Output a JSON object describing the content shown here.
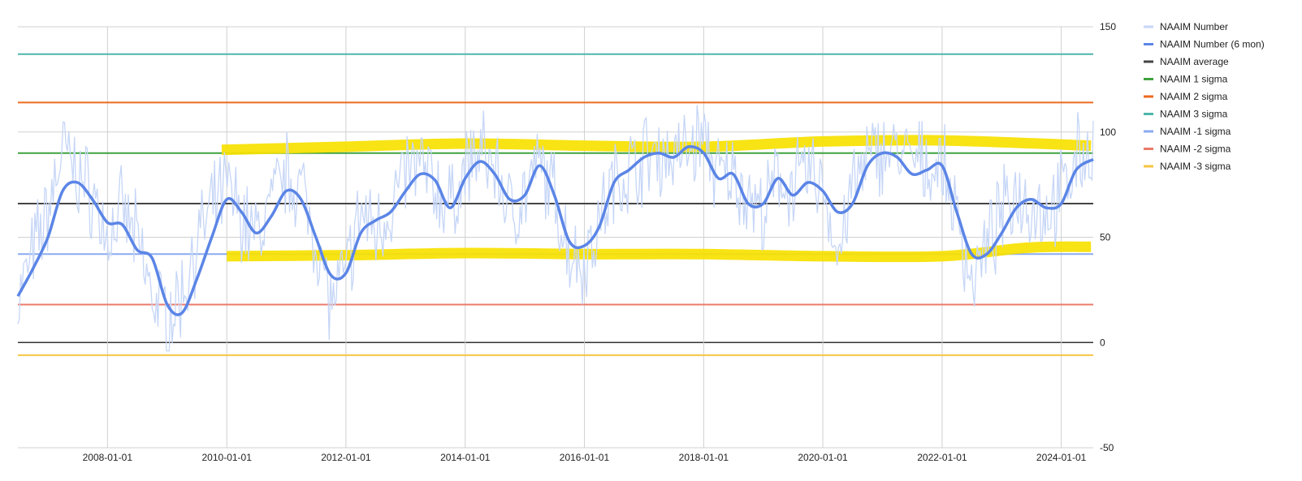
{
  "chart_data": {
    "type": "line",
    "title": "",
    "xlabel": "",
    "ylabel": "",
    "x_range": [
      "2006-07-01",
      "2024-07-15"
    ],
    "ylim": [
      -50,
      150
    ],
    "y_ticks": [
      150,
      100,
      50,
      0,
      -50
    ],
    "x_ticks": [
      "2008-01-01",
      "2010-01-01",
      "2012-01-01",
      "2014-01-01",
      "2016-01-01",
      "2018-01-01",
      "2020-01-01",
      "2022-01-01",
      "2024-01-01"
    ],
    "y_axis_side": "right",
    "grid": true,
    "legend_position": "right",
    "series": [
      {
        "name": "NAAIM Number",
        "color": "#c6d6f7",
        "style": "noisy-line",
        "points": [
          [
            "2006-07-01",
            20
          ],
          [
            "2006-10-01",
            42
          ],
          [
            "2007-01-01",
            62
          ],
          [
            "2007-04-01",
            92
          ],
          [
            "2007-07-01",
            80
          ],
          [
            "2007-10-01",
            70
          ],
          [
            "2008-01-01",
            50
          ],
          [
            "2008-04-01",
            62
          ],
          [
            "2008-07-01",
            48
          ],
          [
            "2008-10-01",
            22
          ],
          [
            "2009-01-01",
            12
          ],
          [
            "2009-04-01",
            22
          ],
          [
            "2009-07-01",
            48
          ],
          [
            "2009-10-01",
            62
          ],
          [
            "2010-01-01",
            74
          ],
          [
            "2010-04-01",
            60
          ],
          [
            "2010-07-01",
            50
          ],
          [
            "2010-10-01",
            66
          ],
          [
            "2011-01-01",
            80
          ],
          [
            "2011-04-01",
            74
          ],
          [
            "2011-07-01",
            50
          ],
          [
            "2011-10-01",
            18
          ],
          [
            "2012-01-01",
            32
          ],
          [
            "2012-04-01",
            62
          ],
          [
            "2012-07-01",
            54
          ],
          [
            "2012-10-01",
            64
          ],
          [
            "2013-01-01",
            80
          ],
          [
            "2013-04-01",
            84
          ],
          [
            "2013-07-01",
            74
          ],
          [
            "2013-10-01",
            64
          ],
          [
            "2014-01-01",
            82
          ],
          [
            "2014-04-01",
            90
          ],
          [
            "2014-07-01",
            84
          ],
          [
            "2014-10-01",
            62
          ],
          [
            "2015-01-01",
            70
          ],
          [
            "2015-04-01",
            84
          ],
          [
            "2015-07-01",
            70
          ],
          [
            "2015-10-01",
            44
          ],
          [
            "2016-01-01",
            38
          ],
          [
            "2016-04-01",
            58
          ],
          [
            "2016-07-01",
            76
          ],
          [
            "2016-10-01",
            82
          ],
          [
            "2017-01-01",
            88
          ],
          [
            "2017-04-01",
            90
          ],
          [
            "2017-07-01",
            88
          ],
          [
            "2017-10-01",
            92
          ],
          [
            "2018-01-01",
            98
          ],
          [
            "2018-04-01",
            78
          ],
          [
            "2018-07-01",
            80
          ],
          [
            "2018-10-01",
            70
          ],
          [
            "2019-01-01",
            60
          ],
          [
            "2019-04-01",
            78
          ],
          [
            "2019-07-01",
            74
          ],
          [
            "2019-10-01",
            80
          ],
          [
            "2020-01-01",
            76
          ],
          [
            "2020-04-01",
            40
          ],
          [
            "2020-07-01",
            74
          ],
          [
            "2020-10-01",
            86
          ],
          [
            "2021-01-01",
            92
          ],
          [
            "2021-04-01",
            90
          ],
          [
            "2021-07-01",
            86
          ],
          [
            "2021-10-01",
            84
          ],
          [
            "2022-01-01",
            84
          ],
          [
            "2022-04-01",
            60
          ],
          [
            "2022-07-01",
            30
          ],
          [
            "2022-10-01",
            44
          ],
          [
            "2023-01-01",
            60
          ],
          [
            "2023-04-01",
            72
          ],
          [
            "2023-07-01",
            66
          ],
          [
            "2023-10-01",
            62
          ],
          [
            "2024-01-01",
            70
          ],
          [
            "2024-04-01",
            88
          ],
          [
            "2024-07-15",
            92
          ]
        ]
      },
      {
        "name": "NAAIM Number (6 mon)",
        "color": "#5b85e6",
        "style": "thick-line",
        "points": [
          [
            "2006-07-01",
            22
          ],
          [
            "2006-10-01",
            35
          ],
          [
            "2007-01-01",
            50
          ],
          [
            "2007-04-01",
            72
          ],
          [
            "2007-07-01",
            76
          ],
          [
            "2007-10-01",
            68
          ],
          [
            "2008-01-01",
            57
          ],
          [
            "2008-04-01",
            56
          ],
          [
            "2008-07-01",
            44
          ],
          [
            "2008-10-01",
            40
          ],
          [
            "2009-01-01",
            18
          ],
          [
            "2009-04-01",
            14
          ],
          [
            "2009-07-01",
            30
          ],
          [
            "2009-10-01",
            50
          ],
          [
            "2010-01-01",
            68
          ],
          [
            "2010-04-01",
            62
          ],
          [
            "2010-07-01",
            52
          ],
          [
            "2010-10-01",
            60
          ],
          [
            "2011-01-01",
            72
          ],
          [
            "2011-04-01",
            68
          ],
          [
            "2011-07-01",
            50
          ],
          [
            "2011-10-01",
            32
          ],
          [
            "2012-01-01",
            33
          ],
          [
            "2012-04-01",
            52
          ],
          [
            "2012-07-01",
            58
          ],
          [
            "2012-10-01",
            62
          ],
          [
            "2013-01-01",
            72
          ],
          [
            "2013-04-01",
            80
          ],
          [
            "2013-07-01",
            77
          ],
          [
            "2013-10-01",
            64
          ],
          [
            "2014-01-01",
            78
          ],
          [
            "2014-04-01",
            86
          ],
          [
            "2014-07-01",
            80
          ],
          [
            "2014-10-01",
            68
          ],
          [
            "2015-01-01",
            70
          ],
          [
            "2015-04-01",
            84
          ],
          [
            "2015-07-01",
            70
          ],
          [
            "2015-10-01",
            48
          ],
          [
            "2016-01-01",
            46
          ],
          [
            "2016-04-01",
            55
          ],
          [
            "2016-07-01",
            76
          ],
          [
            "2016-10-01",
            82
          ],
          [
            "2017-01-01",
            88
          ],
          [
            "2017-04-01",
            90
          ],
          [
            "2017-07-01",
            88
          ],
          [
            "2017-10-01",
            93
          ],
          [
            "2018-01-01",
            90
          ],
          [
            "2018-04-01",
            78
          ],
          [
            "2018-07-01",
            80
          ],
          [
            "2018-10-01",
            66
          ],
          [
            "2019-01-01",
            66
          ],
          [
            "2019-04-01",
            78
          ],
          [
            "2019-07-01",
            70
          ],
          [
            "2019-10-01",
            76
          ],
          [
            "2020-01-01",
            72
          ],
          [
            "2020-04-01",
            62
          ],
          [
            "2020-07-01",
            66
          ],
          [
            "2020-10-01",
            84
          ],
          [
            "2021-01-01",
            90
          ],
          [
            "2021-04-01",
            88
          ],
          [
            "2021-07-01",
            80
          ],
          [
            "2021-10-01",
            82
          ],
          [
            "2022-01-01",
            84
          ],
          [
            "2022-04-01",
            62
          ],
          [
            "2022-07-01",
            42
          ],
          [
            "2022-10-01",
            42
          ],
          [
            "2023-01-01",
            52
          ],
          [
            "2023-04-01",
            64
          ],
          [
            "2023-07-01",
            68
          ],
          [
            "2023-10-01",
            64
          ],
          [
            "2024-01-01",
            66
          ],
          [
            "2024-04-01",
            82
          ],
          [
            "2024-07-15",
            87
          ]
        ]
      },
      {
        "name": "NAAIM average",
        "color": "#444444",
        "value": 66
      },
      {
        "name": "NAAIM 1 sigma",
        "color": "#3ea23e",
        "value": 90
      },
      {
        "name": "NAAIM 2 sigma",
        "color": "#ee6a1e",
        "value": 114
      },
      {
        "name": "NAAIM 3 sigma",
        "color": "#4db6ac",
        "value": 137
      },
      {
        "name": "NAAIM -1 sigma",
        "color": "#8aaaf0",
        "value": 42
      },
      {
        "name": "NAAIM -2 sigma",
        "color": "#ea7a6a",
        "value": 18
      },
      {
        "name": "NAAIM -3 sigma",
        "color": "#f6c542",
        "value": -6
      }
    ],
    "annotations": [
      {
        "type": "highlight-band",
        "color": "#f7e100",
        "points": [
          [
            "2009-12-01",
            91.5
          ],
          [
            "2012-01-01",
            93
          ],
          [
            "2014-01-01",
            94.5
          ],
          [
            "2016-01-01",
            93.5
          ],
          [
            "2018-01-01",
            93
          ],
          [
            "2020-01-01",
            95.5
          ],
          [
            "2022-01-01",
            96
          ],
          [
            "2024-07-01",
            93.5
          ]
        ]
      },
      {
        "type": "highlight-band",
        "color": "#f7e100",
        "points": [
          [
            "2010-01-01",
            41
          ],
          [
            "2012-01-01",
            41.5
          ],
          [
            "2014-01-01",
            42.5
          ],
          [
            "2016-01-01",
            42
          ],
          [
            "2018-01-01",
            42
          ],
          [
            "2020-01-01",
            41
          ],
          [
            "2022-01-01",
            41
          ],
          [
            "2023-06-01",
            45
          ],
          [
            "2024-07-01",
            45.5
          ]
        ]
      }
    ]
  }
}
